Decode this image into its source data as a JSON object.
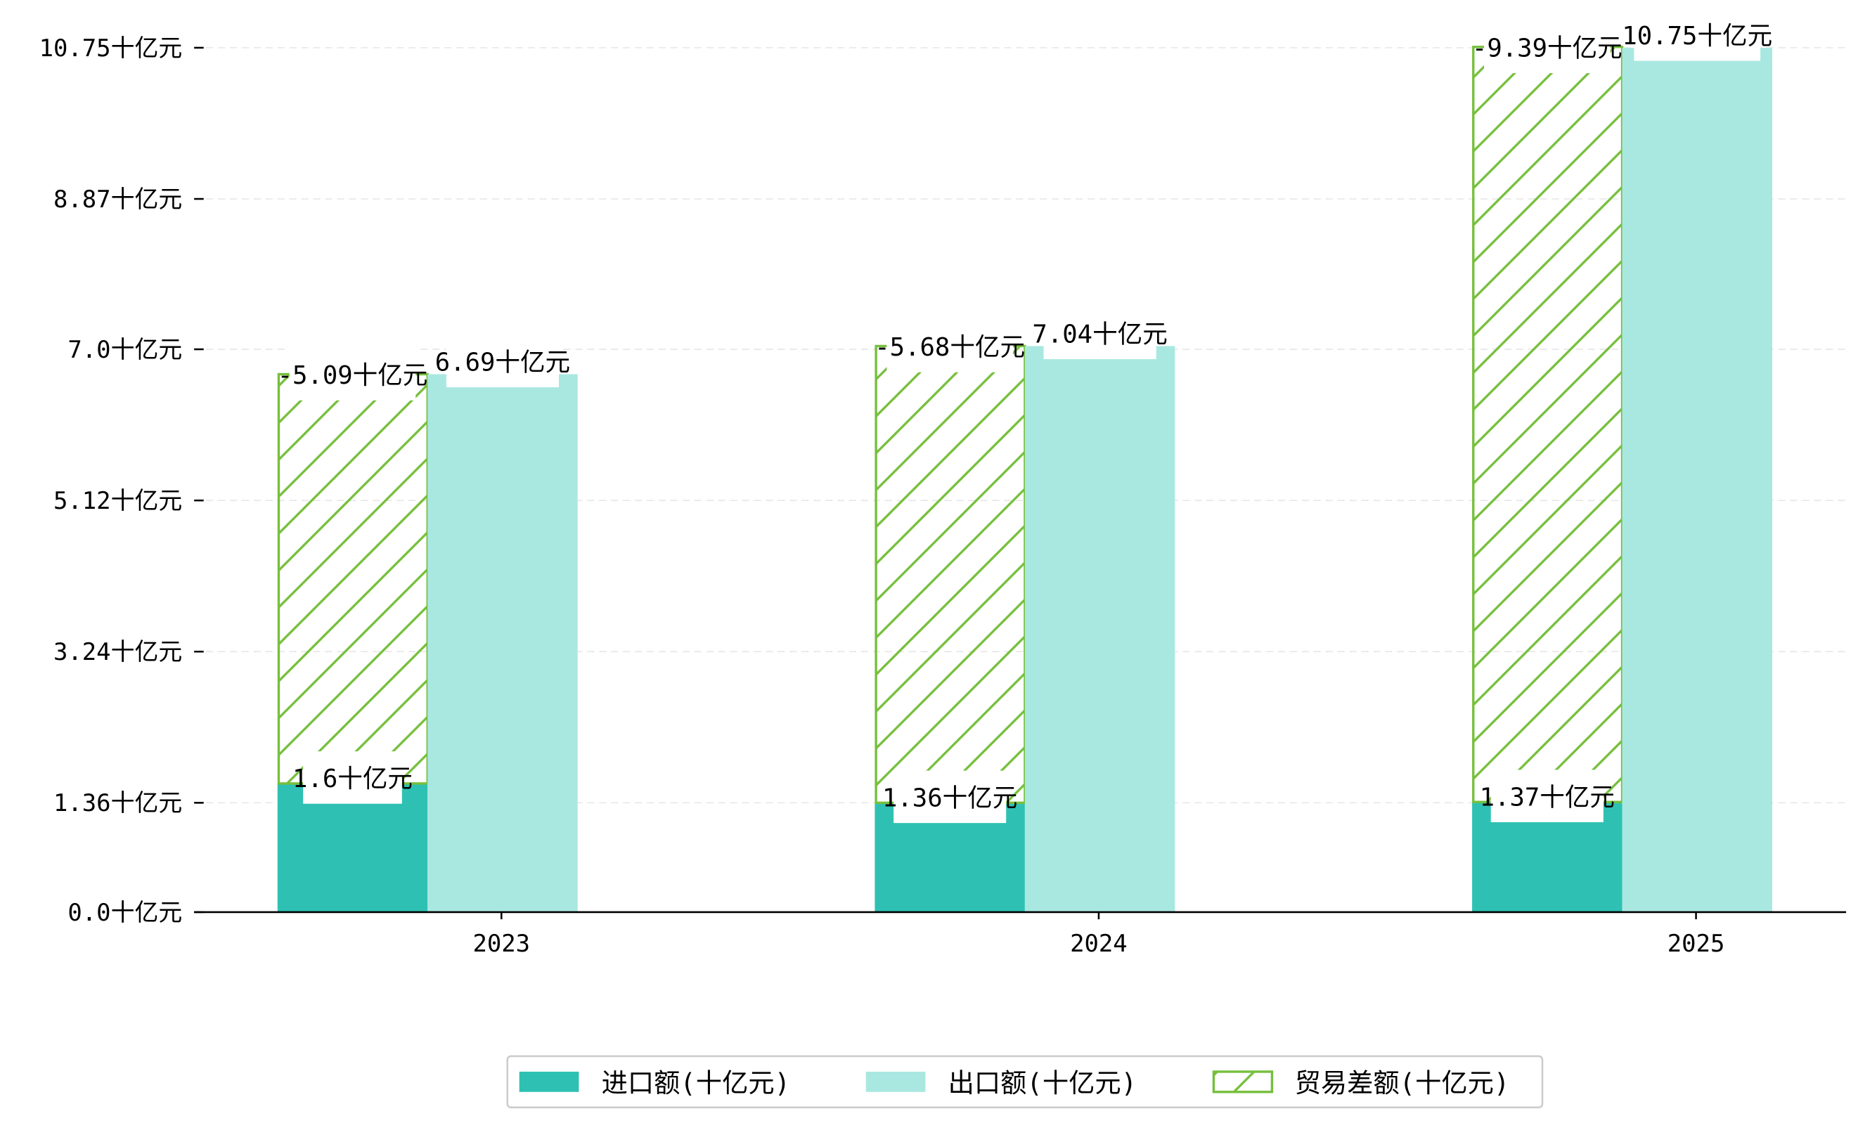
{
  "chart_data": {
    "type": "bar",
    "title": "",
    "xlabel": "",
    "ylabel": "",
    "categories": [
      "2023",
      "2024",
      "2025"
    ],
    "series": [
      {
        "name": "进口额(十亿元)",
        "values": [
          1.6,
          1.36,
          1.37
        ],
        "color": "#2ec1b3",
        "labels": [
          "1.6十亿元",
          "1.36十亿元",
          "1.37十亿元"
        ]
      },
      {
        "name": "出口额(十亿元)",
        "values": [
          6.69,
          7.04,
          10.75
        ],
        "color": "#a9e8e1",
        "labels": [
          "6.69十亿元",
          "7.04十亿元",
          "10.75十亿元"
        ]
      },
      {
        "name": "贸易差额(十亿元)",
        "values": [
          -5.09,
          -5.68,
          -9.39
        ],
        "color": "#76bf3c",
        "hatch": true,
        "labels": [
          "-5.09十亿元",
          "-5.68十亿元",
          "-9.39十亿元"
        ]
      }
    ],
    "yticks": [
      0.0,
      1.36,
      3.24,
      5.12,
      7.0,
      8.87,
      10.75
    ],
    "ytick_labels": [
      "0.0十亿元",
      "1.36十亿元",
      "3.24十亿元",
      "5.12十亿元",
      "7.0十亿元",
      "8.87十亿元",
      "10.75十亿元"
    ],
    "ylim": [
      0,
      10.75
    ],
    "grid": true,
    "legend_position": "bottom-center"
  }
}
